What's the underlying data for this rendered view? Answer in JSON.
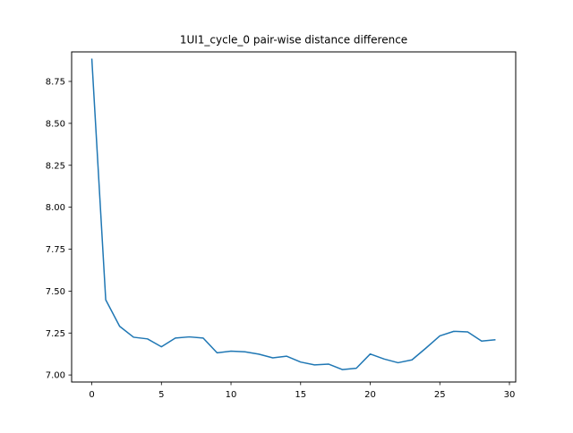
{
  "chart_data": {
    "type": "line",
    "title": "1UI1_cycle_0 pair-wise distance difference",
    "xlabel": "",
    "ylabel": "",
    "xlim": [
      -1.45,
      30.45
    ],
    "ylim": [
      6.958,
      8.926
    ],
    "xticks": [
      0,
      5,
      10,
      15,
      20,
      25,
      30
    ],
    "yticks": [
      7.0,
      7.25,
      7.5,
      7.75,
      8.0,
      8.25,
      8.5,
      8.75
    ],
    "ytick_labels": [
      "7.00",
      "7.25",
      "7.50",
      "7.75",
      "8.00",
      "8.25",
      "8.50",
      "8.75"
    ],
    "grid": false,
    "line_color": "#1f77b4",
    "series": [
      {
        "x": [
          0,
          1,
          2,
          3,
          4,
          5,
          6,
          7,
          8,
          9,
          10,
          11,
          12,
          13,
          14,
          15,
          16,
          17,
          18,
          19,
          20,
          21,
          22,
          23,
          24,
          25,
          26,
          27,
          28,
          29
        ],
        "values": [
          8.886,
          7.448,
          7.29,
          7.225,
          7.215,
          7.168,
          7.22,
          7.227,
          7.22,
          7.132,
          7.142,
          7.138,
          7.124,
          7.102,
          7.112,
          7.077,
          7.06,
          7.065,
          7.032,
          7.04,
          7.125,
          7.095,
          7.073,
          7.09,
          7.16,
          7.233,
          7.26,
          7.257,
          7.202,
          7.21
        ]
      }
    ]
  }
}
